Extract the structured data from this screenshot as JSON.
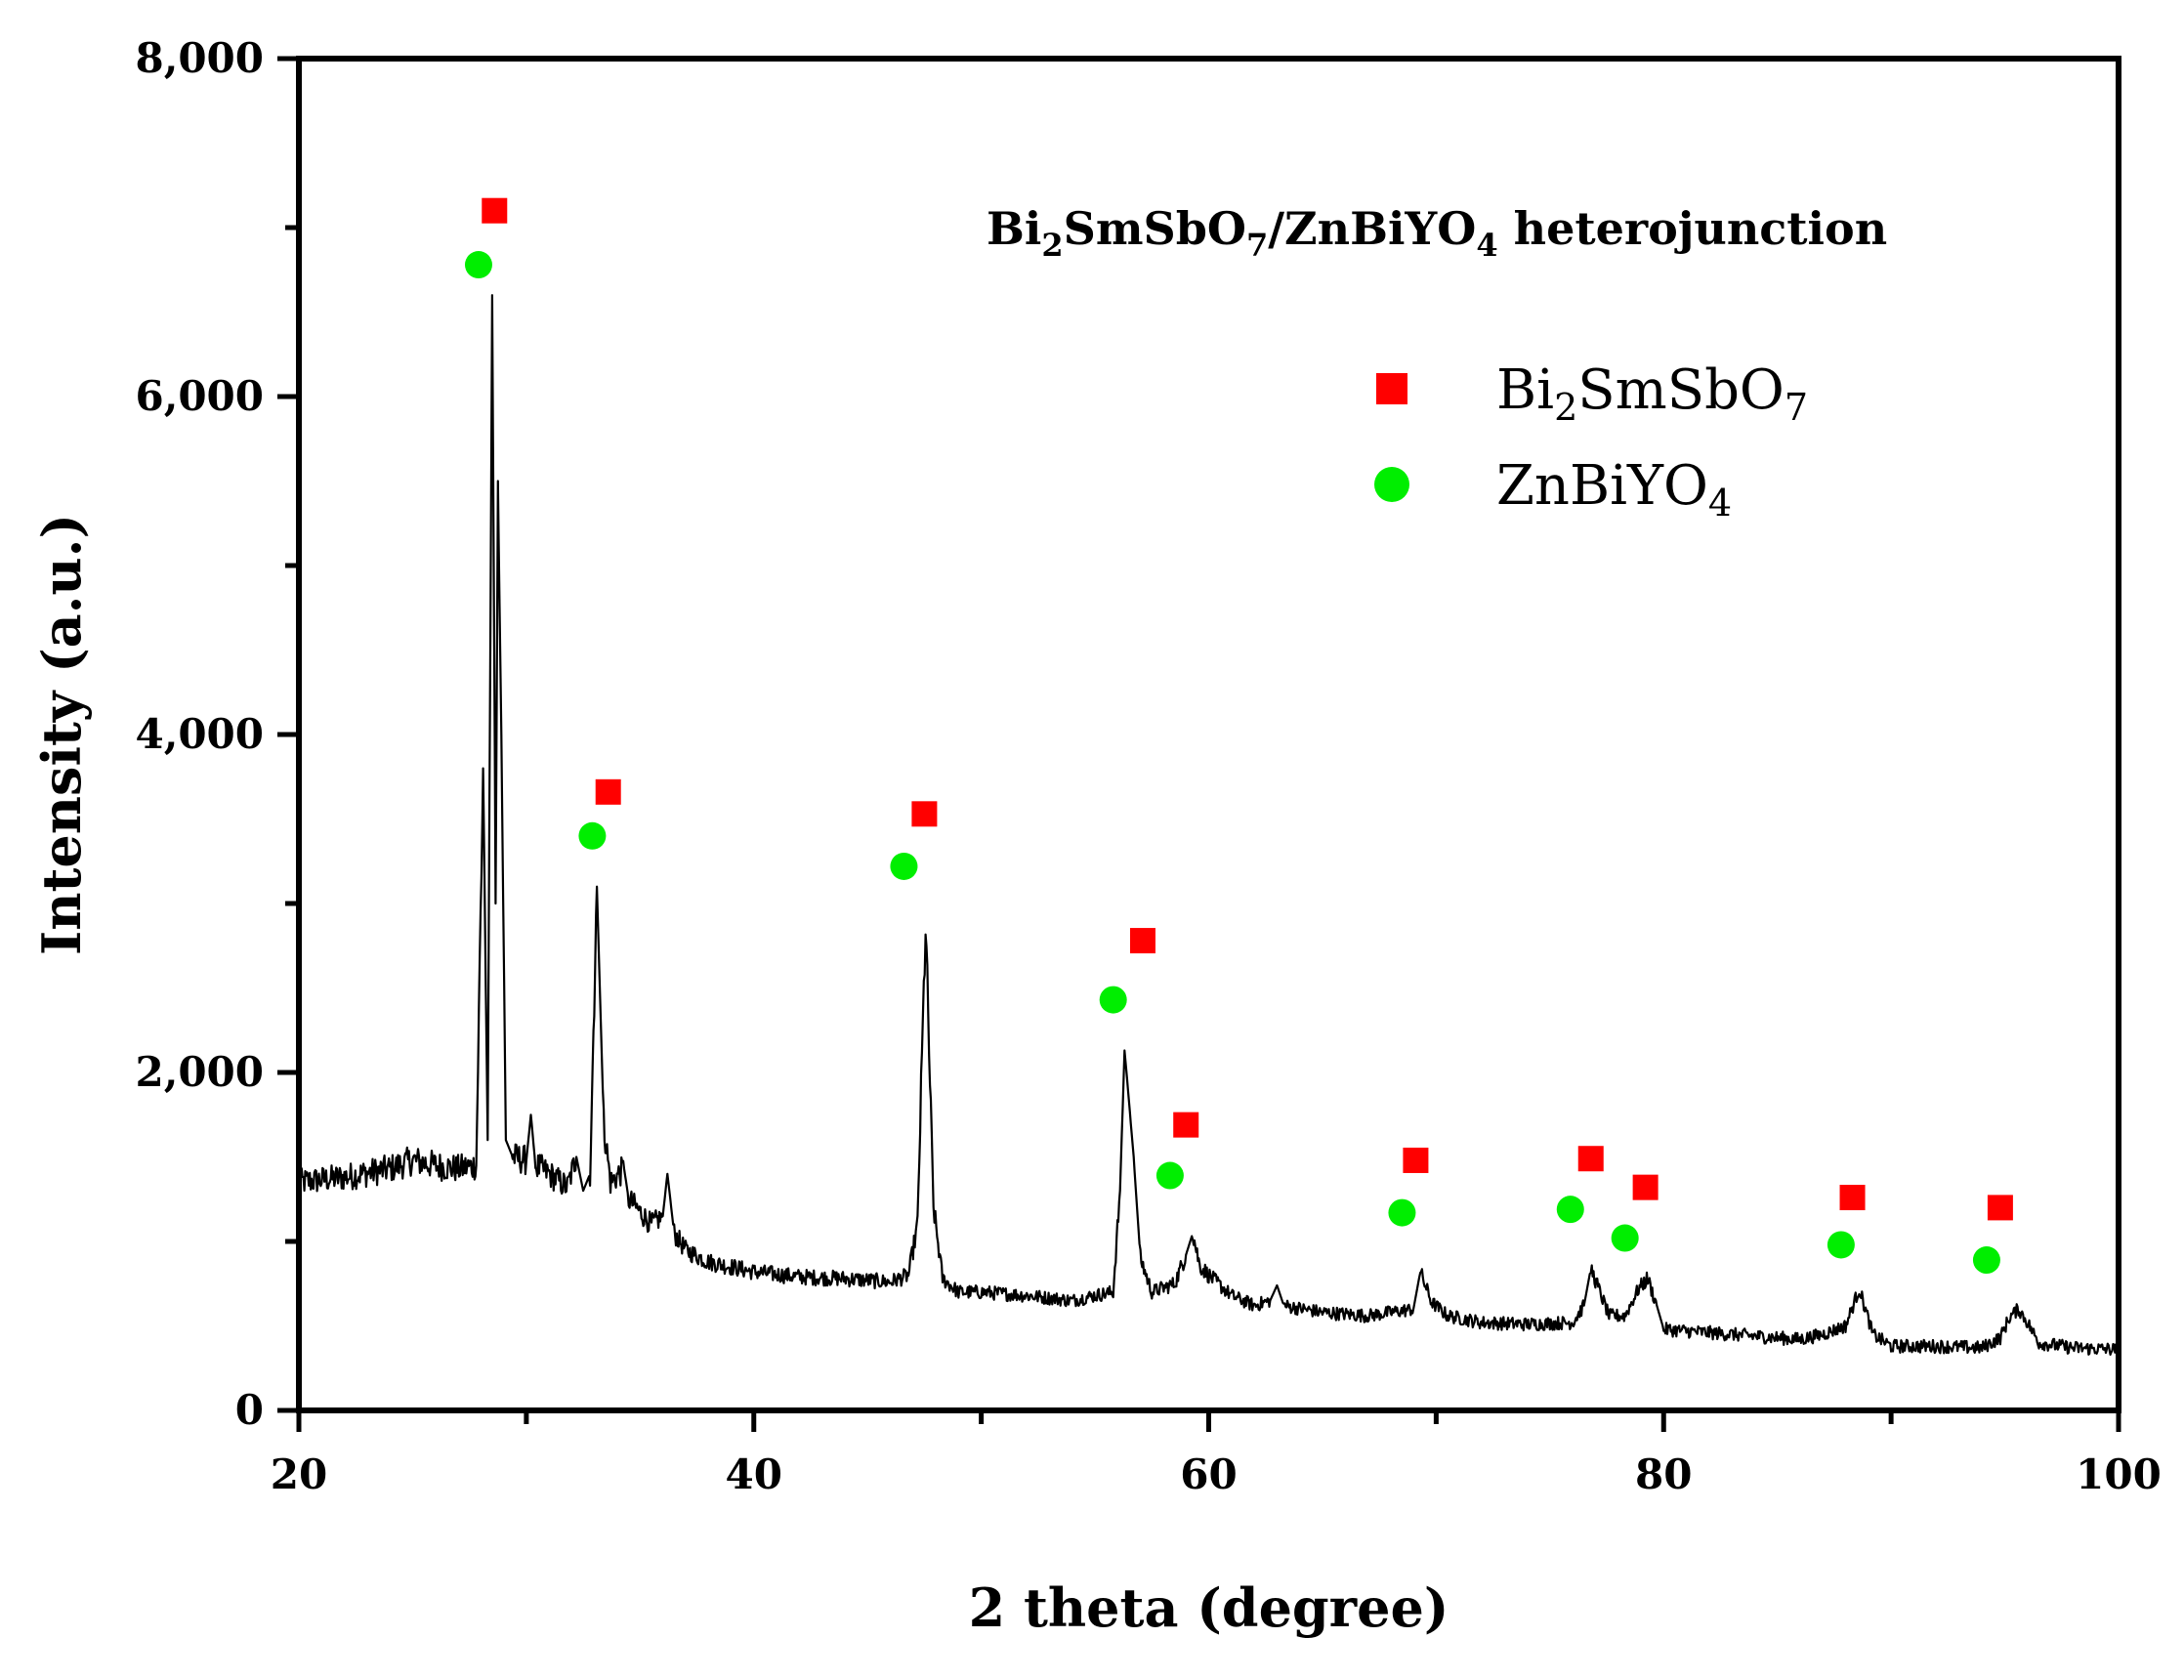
{
  "chart_data": {
    "type": "line",
    "annotation": {
      "parts": [
        {
          "text": "Bi",
          "sub": false
        },
        {
          "text": "2",
          "sub": true
        },
        {
          "text": "SmSbO",
          "sub": false
        },
        {
          "text": "7",
          "sub": true
        },
        {
          "text": "/ZnBiYO",
          "sub": false
        },
        {
          "text": "4",
          "sub": true
        },
        {
          "text": " heterojunction",
          "sub": false
        }
      ]
    },
    "xlabel": "2 theta (degree)",
    "ylabel": "Intensity (a.u.)",
    "xlim": [
      20,
      100
    ],
    "ylim": [
      0,
      8000
    ],
    "x_ticks": [
      20,
      40,
      60,
      80,
      100
    ],
    "x_tick_labels": [
      "20",
      "40",
      "60",
      "80",
      "100"
    ],
    "y_ticks": [
      0,
      2000,
      4000,
      6000,
      8000
    ],
    "y_tick_labels": [
      "0",
      "2,000",
      "4,000",
      "6,000",
      "8,000"
    ],
    "grid": false,
    "legend": {
      "placement": "top-right",
      "entries": [
        {
          "marker": "square",
          "color": "#ff0000",
          "parts": [
            {
              "text": "Bi",
              "sub": false
            },
            {
              "text": "2",
              "sub": true
            },
            {
              "text": "SmSbO",
              "sub": false
            },
            {
              "text": "7",
              "sub": true
            }
          ]
        },
        {
          "marker": "circle",
          "color": "#00ee00",
          "parts": [
            {
              "text": "ZnBiYO",
              "sub": false
            },
            {
              "text": "4",
              "sub": true
            }
          ]
        }
      ]
    },
    "series": [
      {
        "style": "line",
        "color": "#000000",
        "points": [
          [
            20,
            1350
          ],
          [
            22,
            1380
          ],
          [
            24,
            1430
          ],
          [
            25,
            1480
          ],
          [
            26,
            1450
          ],
          [
            27,
            1430
          ],
          [
            27.8,
            1450
          ],
          [
            28.1,
            3800
          ],
          [
            28.3,
            1600
          ],
          [
            28.5,
            6600
          ],
          [
            28.65,
            3000
          ],
          [
            28.75,
            5500
          ],
          [
            28.9,
            4000
          ],
          [
            29.1,
            1600
          ],
          [
            29.4,
            1500
          ],
          [
            30.0,
            1480
          ],
          [
            30.2,
            1750
          ],
          [
            30.4,
            1450
          ],
          [
            31,
            1400
          ],
          [
            31.8,
            1320
          ],
          [
            32.2,
            1500
          ],
          [
            32.5,
            1300
          ],
          [
            32.8,
            1400
          ],
          [
            33.1,
            3100
          ],
          [
            33.4,
            1700
          ],
          [
            33.7,
            1350
          ],
          [
            34.3,
            1430
          ],
          [
            34.5,
            1250
          ],
          [
            35.5,
            1100
          ],
          [
            36,
            1150
          ],
          [
            36.2,
            1400
          ],
          [
            36.5,
            1050
          ],
          [
            37,
            950
          ],
          [
            38,
            880
          ],
          [
            40,
            820
          ],
          [
            42,
            790
          ],
          [
            44,
            780
          ],
          [
            46,
            760
          ],
          [
            46.8,
            800
          ],
          [
            47.2,
            1100
          ],
          [
            47.55,
            2870
          ],
          [
            47.9,
            1200
          ],
          [
            48.3,
            780
          ],
          [
            49,
            700
          ],
          [
            50,
            700
          ],
          [
            52,
            680
          ],
          [
            54,
            650
          ],
          [
            55,
            680
          ],
          [
            55.8,
            700
          ],
          [
            56.1,
            1300
          ],
          [
            56.3,
            2130
          ],
          [
            56.45,
            1900
          ],
          [
            56.7,
            1500
          ],
          [
            57,
            900
          ],
          [
            57.5,
            700
          ],
          [
            58.5,
            750
          ],
          [
            59,
            920
          ],
          [
            59.3,
            1050
          ],
          [
            59.6,
            860
          ],
          [
            60,
            800
          ],
          [
            61,
            680
          ],
          [
            62,
            620
          ],
          [
            62.7,
            650
          ],
          [
            63,
            740
          ],
          [
            63.3,
            620
          ],
          [
            65,
            580
          ],
          [
            67,
            560
          ],
          [
            68,
            580
          ],
          [
            69,
            600
          ],
          [
            69.3,
            820
          ],
          [
            69.8,
            640
          ],
          [
            70.5,
            560
          ],
          [
            72,
            520
          ],
          [
            74,
            510
          ],
          [
            76,
            520
          ],
          [
            76.5,
            620
          ],
          [
            76.8,
            840
          ],
          [
            77.2,
            700
          ],
          [
            77.6,
            560
          ],
          [
            78.3,
            560
          ],
          [
            78.9,
            720
          ],
          [
            79.3,
            780
          ],
          [
            79.7,
            620
          ],
          [
            80,
            480
          ],
          [
            82,
            460
          ],
          [
            84,
            440
          ],
          [
            86,
            420
          ],
          [
            87,
            450
          ],
          [
            88,
            500
          ],
          [
            88.6,
            720
          ],
          [
            89.2,
            450
          ],
          [
            90,
            380
          ],
          [
            92,
            380
          ],
          [
            94,
            370
          ],
          [
            94.8,
            430
          ],
          [
            95.2,
            550
          ],
          [
            95.6,
            600
          ],
          [
            96,
            520
          ],
          [
            96.5,
            400
          ],
          [
            98,
            370
          ],
          [
            100,
            360
          ]
        ]
      }
    ],
    "markers": {
      "Bi2SmSbO7": {
        "shape": "square",
        "color": "#ff0000",
        "points": [
          [
            28.6,
            7100
          ],
          [
            33.6,
            3660
          ],
          [
            47.5,
            3530
          ],
          [
            57.1,
            2780
          ],
          [
            59.0,
            1690
          ],
          [
            69.1,
            1480
          ],
          [
            76.8,
            1490
          ],
          [
            79.2,
            1320
          ],
          [
            88.3,
            1260
          ],
          [
            94.8,
            1200
          ]
        ]
      },
      "ZnBiYO4": {
        "shape": "circle",
        "color": "#00ee00",
        "points": [
          [
            27.9,
            6780
          ],
          [
            32.9,
            3400
          ],
          [
            46.6,
            3220
          ],
          [
            55.8,
            2430
          ],
          [
            58.3,
            1390
          ],
          [
            68.5,
            1170
          ],
          [
            75.9,
            1190
          ],
          [
            78.3,
            1020
          ],
          [
            87.8,
            980
          ],
          [
            94.2,
            890
          ]
        ]
      }
    }
  }
}
